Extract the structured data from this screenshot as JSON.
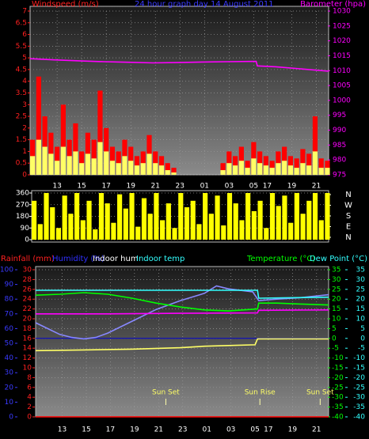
{
  "chart_data": [
    {
      "type": "wind",
      "title": "24 hour graph day  14 August 2011",
      "xlim": [
        0,
        24.3
      ],
      "xticks": [
        {
          "value": 2.2,
          "label": "13"
        },
        {
          "value": 4.2,
          "label": "15"
        },
        {
          "value": 6.2,
          "label": "17"
        },
        {
          "value": 8.2,
          "label": "19"
        },
        {
          "value": 10.2,
          "label": "21"
        },
        {
          "value": 12.2,
          "label": "23"
        },
        {
          "value": 14.2,
          "label": "01"
        },
        {
          "value": 16.2,
          "label": "03"
        },
        {
          "value": 18.2,
          "label": "05"
        },
        {
          "value": 19.3,
          "label": "17"
        },
        {
          "value": 21.3,
          "label": "19"
        },
        {
          "value": 23.3,
          "label": "21"
        }
      ],
      "ylim": [
        0,
        7
      ],
      "yticks": [
        0,
        0.5,
        1,
        1.5,
        2,
        2.5,
        3,
        3.5,
        4,
        4.5,
        5,
        5.5,
        6,
        6.5,
        7
      ],
      "y2lim": [
        975,
        1030
      ],
      "y2ticks": [
        975,
        980,
        985,
        990,
        995,
        1000,
        1005,
        1010,
        1015,
        1020,
        1025,
        1030
      ],
      "grid": true,
      "series": [
        {
          "name": "Windspeed (m/s)",
          "color": "#ff0000",
          "kind": "bar",
          "x": [
            0,
            0.5,
            1,
            1.5,
            2,
            2.5,
            3,
            3.5,
            4,
            4.5,
            5,
            5.5,
            6,
            6.5,
            7,
            7.5,
            8,
            8.5,
            9,
            9.5,
            10,
            10.5,
            11,
            11.5,
            12,
            12.5,
            13,
            13.5,
            14,
            14.5,
            15,
            15.5,
            16,
            16.5,
            17,
            17.5,
            18,
            18.5,
            19,
            19.5,
            20,
            20.5,
            21,
            21.5,
            22,
            22.5,
            23,
            23.5,
            24
          ],
          "values": [
            1.5,
            4.2,
            2.5,
            1.8,
            1.2,
            3.0,
            1.5,
            2.2,
            1.0,
            1.8,
            1.5,
            3.6,
            2.0,
            1.2,
            1.0,
            1.5,
            1.2,
            0.8,
            1.0,
            1.7,
            1.0,
            0.8,
            0.5,
            0.3,
            0,
            0,
            0,
            0,
            0,
            0,
            0,
            0.5,
            1.0,
            0.8,
            1.2,
            0.6,
            1.4,
            1.0,
            0.8,
            0.6,
            1.0,
            1.2,
            0.8,
            0.7,
            1.1,
            0.9,
            2.5,
            0.7,
            0.6
          ]
        },
        {
          "color": "#ffff66",
          "kind": "bar",
          "x": [
            0,
            0.5,
            1,
            1.5,
            2,
            2.5,
            3,
            3.5,
            4,
            4.5,
            5,
            5.5,
            6,
            6.5,
            7,
            7.5,
            8,
            8.5,
            9,
            9.5,
            10,
            10.5,
            11,
            11.5,
            12,
            12.5,
            13,
            13.5,
            14,
            14.5,
            15,
            15.5,
            16,
            16.5,
            17,
            17.5,
            18,
            18.5,
            19,
            19.5,
            20,
            20.5,
            21,
            21.5,
            22,
            22.5,
            23,
            23.5,
            24
          ],
          "values": [
            0.8,
            1.5,
            1.2,
            0.9,
            0.6,
            1.2,
            0.8,
            1.0,
            0.5,
            0.9,
            0.7,
            1.4,
            1.0,
            0.6,
            0.5,
            0.8,
            0.6,
            0.4,
            0.5,
            0.9,
            0.5,
            0.4,
            0.2,
            0.1,
            0,
            0,
            0,
            0,
            0,
            0,
            0,
            0.2,
            0.5,
            0.4,
            0.6,
            0.3,
            0.7,
            0.5,
            0.4,
            0.3,
            0.5,
            0.6,
            0.4,
            0.3,
            0.5,
            0.4,
            1.0,
            0.3,
            0.3
          ]
        },
        {
          "name": "Barometer (hpa)",
          "color": "#ff00ff",
          "kind": "line",
          "axis": "y2",
          "x": [
            0,
            2,
            4,
            6,
            8,
            10,
            12,
            14,
            16,
            18.4,
            18.5,
            20,
            22,
            24.3
          ],
          "values": [
            1014,
            1013.6,
            1013.3,
            1013,
            1012.8,
            1012.6,
            1012.7,
            1012.9,
            1013,
            1013.1,
            1011.6,
            1011.3,
            1010.6,
            1009.8
          ]
        }
      ]
    },
    {
      "type": "direction",
      "xlim": [
        0,
        24.3
      ],
      "ylim": [
        0,
        360
      ],
      "yticks": [
        0,
        90,
        180,
        270,
        360
      ],
      "y2lim": [
        0,
        360
      ],
      "y2ticks": [
        {
          "value": 0,
          "label": "N"
        },
        {
          "value": 90,
          "label": "E"
        },
        {
          "value": 180,
          "label": "S"
        },
        {
          "value": 270,
          "label": "W"
        },
        {
          "value": 360,
          "label": "N"
        }
      ],
      "grid": true,
      "series": [
        {
          "color": "#ffff00",
          "kind": "bar",
          "x": [
            0,
            0.5,
            1,
            1.5,
            2,
            2.5,
            3,
            3.5,
            4,
            4.5,
            5,
            5.5,
            6,
            6.5,
            7,
            7.5,
            8,
            8.5,
            9,
            9.5,
            10,
            10.5,
            11,
            11.5,
            12,
            12.5,
            13,
            13.5,
            14,
            14.5,
            15,
            15.5,
            16,
            16.5,
            17,
            17.5,
            18,
            18.5,
            19,
            19.5,
            20,
            20.5,
            21,
            21.5,
            22,
            22.5,
            23,
            23.5,
            24
          ],
          "values": [
            300,
            120,
            360,
            250,
            90,
            340,
            200,
            360,
            150,
            300,
            80,
            360,
            280,
            130,
            350,
            240,
            360,
            100,
            320,
            200,
            360,
            150,
            280,
            90,
            360,
            250,
            300,
            120,
            360,
            200,
            340,
            110,
            360,
            280,
            150,
            360,
            220,
            300,
            90,
            360,
            260,
            340,
            130,
            360,
            200,
            300,
            360,
            150,
            360
          ]
        }
      ]
    },
    {
      "type": "climate",
      "xlim": [
        0,
        24.3
      ],
      "xticks": [
        {
          "value": 2.2,
          "label": "13"
        },
        {
          "value": 4.2,
          "label": "15"
        },
        {
          "value": 6.2,
          "label": "17"
        },
        {
          "value": 8.2,
          "label": "19"
        },
        {
          "value": 10.2,
          "label": "21"
        },
        {
          "value": 12.2,
          "label": "23"
        },
        {
          "value": 14.2,
          "label": "01"
        },
        {
          "value": 16.2,
          "label": "03"
        },
        {
          "value": 18.2,
          "label": "05"
        },
        {
          "value": 19.3,
          "label": "17"
        },
        {
          "value": 21.3,
          "label": "19"
        },
        {
          "value": 23.3,
          "label": "21"
        }
      ],
      "rain_label": "Rainfall (mm)",
      "rain_lim": [
        0,
        30
      ],
      "rain_ticks": [
        0,
        2,
        4,
        6,
        8,
        10,
        12,
        14,
        16,
        18,
        20,
        22,
        24,
        26,
        28,
        30
      ],
      "hum_label": "Humidity (%)",
      "hum_lim": [
        0,
        100
      ],
      "hum_ticks": [
        0,
        10,
        20,
        30,
        40,
        50,
        60,
        70,
        80,
        90,
        100
      ],
      "temp_label": "Temperature (°C)",
      "temp_lim": [
        -40,
        35
      ],
      "temp_ticks": [
        -40,
        -35,
        -30,
        -25,
        -20,
        -15,
        -10,
        -5,
        0,
        5,
        10,
        15,
        20,
        25,
        30,
        35
      ],
      "dew_label": "Dew Point (°C)",
      "dew_lim": [
        -40,
        35
      ],
      "dew_ticks": [
        -40,
        -35,
        -30,
        -25,
        -20,
        -15,
        -10,
        -5,
        0,
        5,
        10,
        15,
        20,
        25,
        30,
        35
      ],
      "grid": true,
      "series": [
        {
          "color": "#ff0000",
          "axis": "rain",
          "x": [
            0,
            24.3
          ],
          "values": [
            0,
            0
          ]
        },
        {
          "color": "#8888ff",
          "axis": "hum",
          "x": [
            0,
            1,
            2,
            3,
            4,
            5,
            6,
            8,
            10,
            12,
            14,
            15,
            16,
            18,
            18.5,
            20,
            22,
            24.3
          ],
          "values": [
            64,
            60,
            56,
            54,
            53,
            54,
            57,
            65,
            73,
            79,
            84,
            89,
            87,
            85,
            79,
            80,
            81,
            83
          ]
        },
        {
          "name": "Indoor hum",
          "color": "#ffff66",
          "axis": "hum",
          "x": [
            0,
            4,
            8,
            12,
            14,
            16,
            18.2,
            18.4,
            24.3
          ],
          "values": [
            45,
            45.5,
            46,
            47,
            48,
            48.5,
            49,
            53,
            53
          ]
        },
        {
          "name": "Indoor temp",
          "color": "#33ffff",
          "axis": "temp",
          "x": [
            0,
            10,
            18.4,
            18.5,
            24.3
          ],
          "values": [
            24.5,
            24.5,
            24.5,
            20.5,
            21
          ]
        },
        {
          "color": "#00ff00",
          "axis": "temp",
          "x": [
            0,
            2,
            4,
            6,
            8,
            10,
            12,
            14,
            16,
            18.4,
            18.5,
            20,
            22,
            24.3
          ],
          "values": [
            22,
            22.5,
            23.3,
            22.5,
            20.5,
            18,
            16,
            14.5,
            14,
            15,
            18,
            18,
            17.5,
            17
          ]
        },
        {
          "color": "#ff00ff",
          "axis": "dew",
          "x": [
            0,
            6,
            12,
            18.4,
            18.5,
            24.3
          ],
          "values": [
            12.5,
            12.5,
            12.8,
            13,
            14.3,
            14.5
          ]
        }
      ],
      "annotations": [
        {
          "text": "Sun Set",
          "x": 10.8
        },
        {
          "text": "Sun Rise",
          "x": 18.6
        },
        {
          "text": "Sun Set",
          "x": 23.6
        }
      ]
    }
  ]
}
